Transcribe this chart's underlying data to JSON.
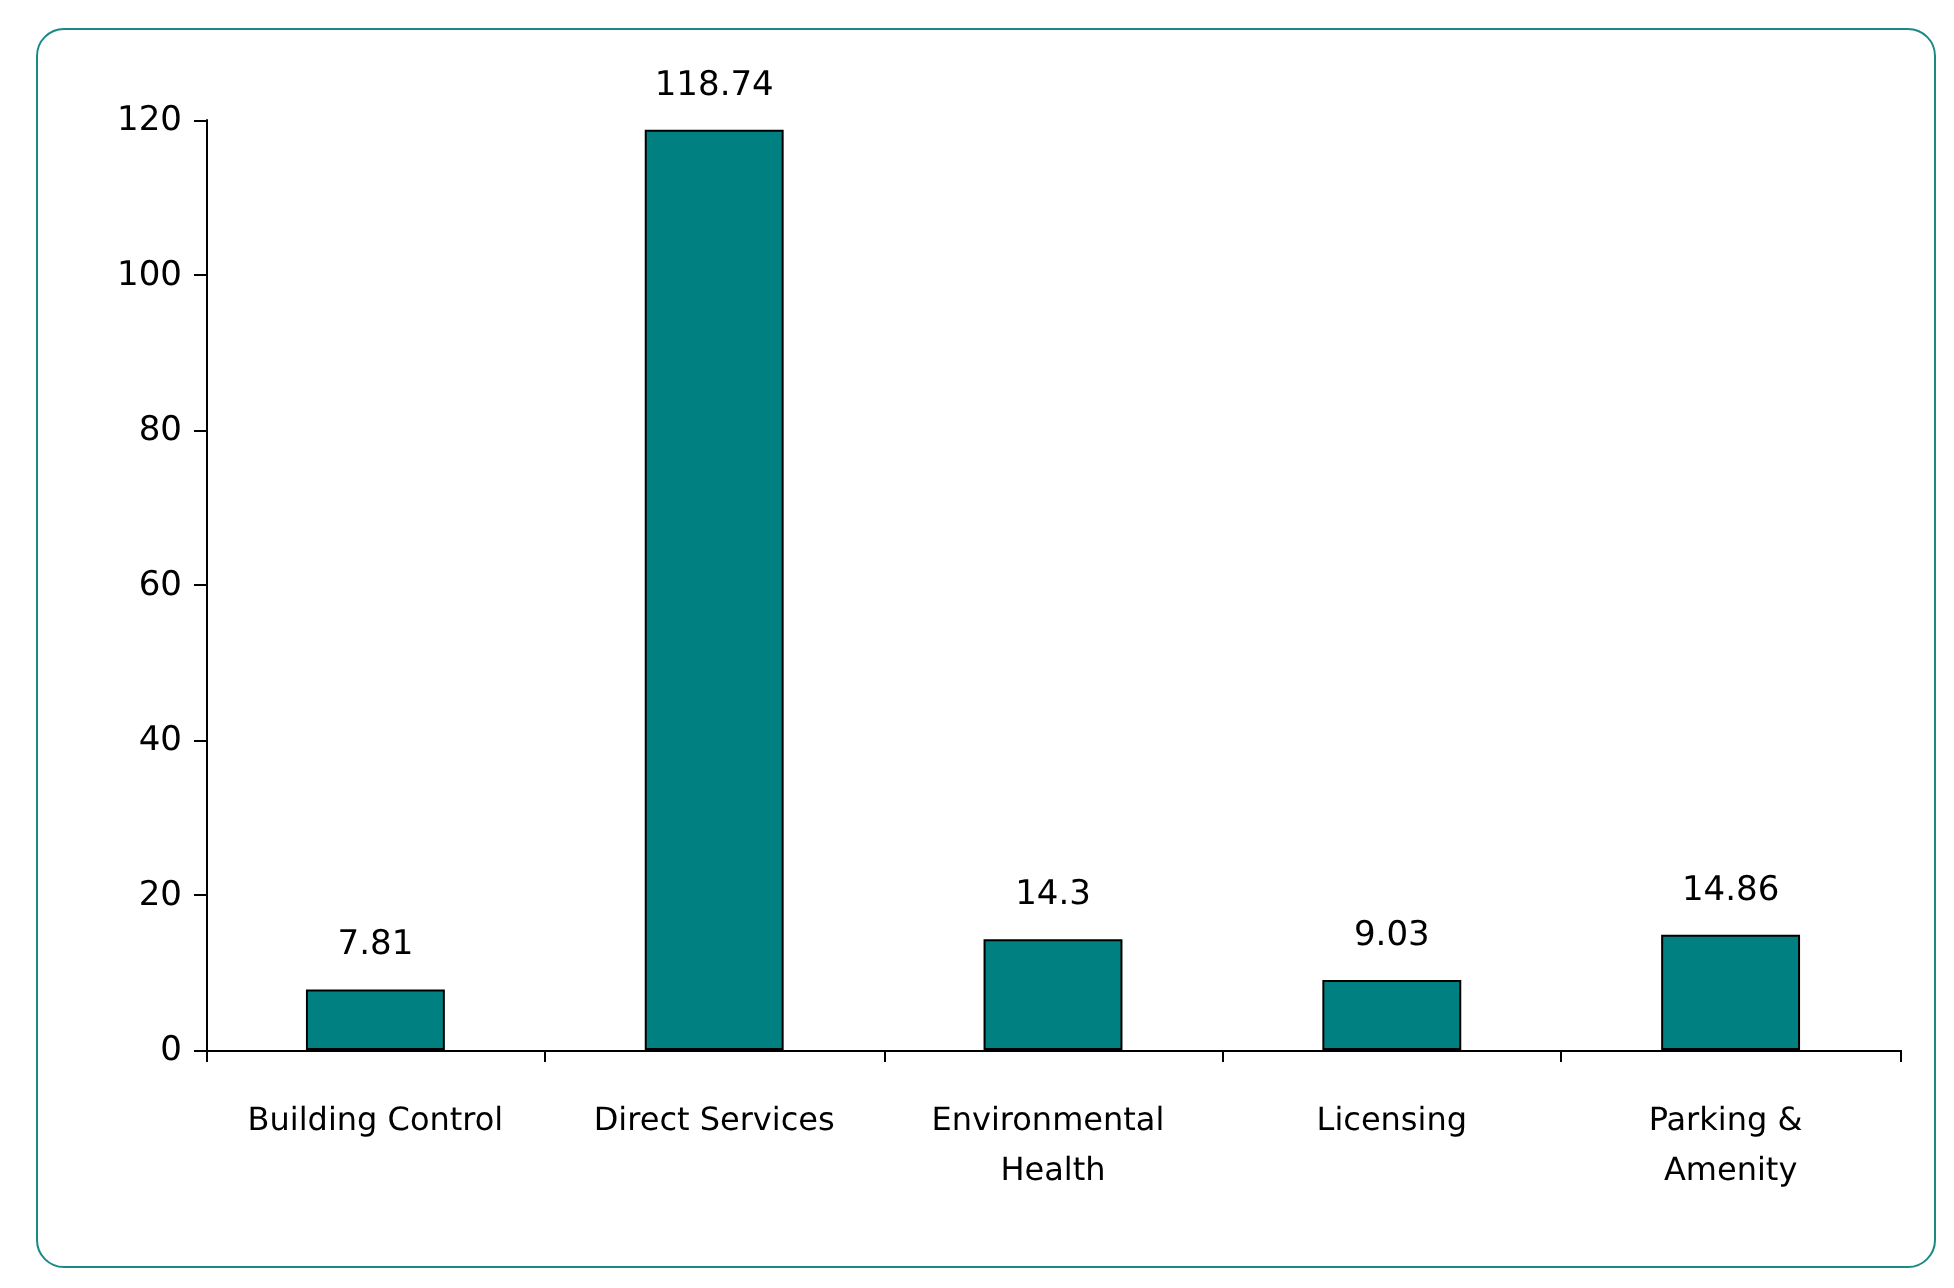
{
  "chart_data": {
    "type": "bar",
    "categories": [
      "Building Control",
      "Direct Services",
      "Environmental Health",
      "Licensing",
      "Parking & Amenity"
    ],
    "values": [
      7.81,
      118.74,
      14.3,
      9.03,
      14.86
    ],
    "color": "#008080",
    "ylim": [
      0,
      120
    ],
    "yticks": [
      0,
      20,
      40,
      60,
      80,
      100,
      120
    ],
    "grid": false,
    "data_labels": true
  }
}
